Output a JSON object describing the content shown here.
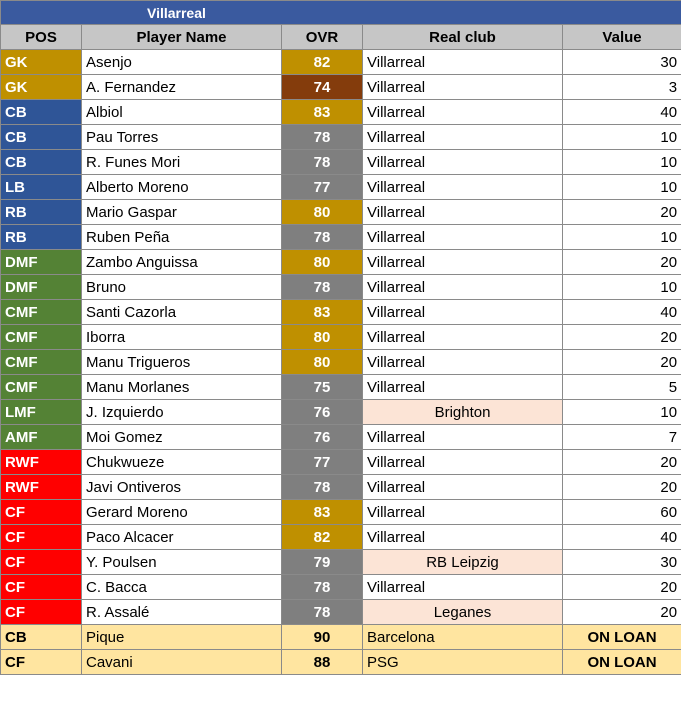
{
  "team_title": "Villarreal",
  "headers": {
    "pos": "POS",
    "name": "Player Name",
    "ovr": "OVR",
    "club": "Real  club",
    "value": "Value"
  },
  "colors": {
    "GK": "#bf9000",
    "DEF": "#2f5597",
    "MID": "#548235",
    "FWD": "#ff0000",
    "ovr_gold": "#bf9000",
    "ovr_gray": "#7f7f7f",
    "ovr_bronze": "#843c0c",
    "club_highlight": "#fce4d6",
    "loan_row": "#ffe5a0"
  },
  "players": [
    {
      "pos": "GK",
      "pos_color": "#bf9000",
      "name": "Asenjo",
      "ovr": "82",
      "ovr_color": "#bf9000",
      "club": "Villarreal",
      "club_hl": false,
      "value": "30"
    },
    {
      "pos": "GK",
      "pos_color": "#bf9000",
      "name": "A. Fernandez",
      "ovr": "74",
      "ovr_color": "#843c0c",
      "club": "Villarreal",
      "club_hl": false,
      "value": "3"
    },
    {
      "pos": "CB",
      "pos_color": "#2f5597",
      "name": "Albiol",
      "ovr": "83",
      "ovr_color": "#bf9000",
      "club": "Villarreal",
      "club_hl": false,
      "value": "40"
    },
    {
      "pos": "CB",
      "pos_color": "#2f5597",
      "name": "Pau Torres",
      "ovr": "78",
      "ovr_color": "#7f7f7f",
      "club": "Villarreal",
      "club_hl": false,
      "value": "10"
    },
    {
      "pos": "CB",
      "pos_color": "#2f5597",
      "name": "R. Funes Mori",
      "ovr": "78",
      "ovr_color": "#7f7f7f",
      "club": "Villarreal",
      "club_hl": false,
      "value": "10"
    },
    {
      "pos": "LB",
      "pos_color": "#2f5597",
      "name": "Alberto Moreno",
      "ovr": "77",
      "ovr_color": "#7f7f7f",
      "club": "Villarreal",
      "club_hl": false,
      "value": "10"
    },
    {
      "pos": "RB",
      "pos_color": "#2f5597",
      "name": "Mario Gaspar",
      "ovr": "80",
      "ovr_color": "#bf9000",
      "club": "Villarreal",
      "club_hl": false,
      "value": "20"
    },
    {
      "pos": "RB",
      "pos_color": "#2f5597",
      "name": "Ruben Peña",
      "ovr": "78",
      "ovr_color": "#7f7f7f",
      "club": "Villarreal",
      "club_hl": false,
      "value": "10"
    },
    {
      "pos": "DMF",
      "pos_color": "#548235",
      "name": "Zambo Anguissa",
      "ovr": "80",
      "ovr_color": "#bf9000",
      "club": "Villarreal",
      "club_hl": false,
      "value": "20"
    },
    {
      "pos": "DMF",
      "pos_color": "#548235",
      "name": "Bruno",
      "ovr": "78",
      "ovr_color": "#7f7f7f",
      "club": "Villarreal",
      "club_hl": false,
      "value": "10"
    },
    {
      "pos": "CMF",
      "pos_color": "#548235",
      "name": "Santi Cazorla",
      "ovr": "83",
      "ovr_color": "#bf9000",
      "club": "Villarreal",
      "club_hl": false,
      "value": "40"
    },
    {
      "pos": "CMF",
      "pos_color": "#548235",
      "name": "Iborra",
      "ovr": "80",
      "ovr_color": "#bf9000",
      "club": "Villarreal",
      "club_hl": false,
      "value": "20"
    },
    {
      "pos": "CMF",
      "pos_color": "#548235",
      "name": "Manu Trigueros",
      "ovr": "80",
      "ovr_color": "#bf9000",
      "club": "Villarreal",
      "club_hl": false,
      "value": "20"
    },
    {
      "pos": "CMF",
      "pos_color": "#548235",
      "name": "Manu Morlanes",
      "ovr": "75",
      "ovr_color": "#7f7f7f",
      "club": "Villarreal",
      "club_hl": false,
      "value": "5"
    },
    {
      "pos": "LMF",
      "pos_color": "#548235",
      "name": "J. Izquierdo",
      "ovr": "76",
      "ovr_color": "#7f7f7f",
      "club": "Brighton",
      "club_hl": true,
      "value": "10"
    },
    {
      "pos": "AMF",
      "pos_color": "#548235",
      "name": "Moi Gomez",
      "ovr": "76",
      "ovr_color": "#7f7f7f",
      "club": "Villarreal",
      "club_hl": false,
      "value": "7"
    },
    {
      "pos": "RWF",
      "pos_color": "#ff0000",
      "name": "Chukwueze",
      "ovr": "77",
      "ovr_color": "#7f7f7f",
      "club": "Villarreal",
      "club_hl": false,
      "value": "20"
    },
    {
      "pos": "RWF",
      "pos_color": "#ff0000",
      "name": "Javi Ontiveros",
      "ovr": "78",
      "ovr_color": "#7f7f7f",
      "club": "Villarreal",
      "club_hl": false,
      "value": "20"
    },
    {
      "pos": "CF",
      "pos_color": "#ff0000",
      "name": "Gerard Moreno",
      "ovr": "83",
      "ovr_color": "#bf9000",
      "club": "Villarreal",
      "club_hl": false,
      "value": "60"
    },
    {
      "pos": "CF",
      "pos_color": "#ff0000",
      "name": "Paco Alcacer",
      "ovr": "82",
      "ovr_color": "#bf9000",
      "club": "Villarreal",
      "club_hl": false,
      "value": "40"
    },
    {
      "pos": "CF",
      "pos_color": "#ff0000",
      "name": "Y. Poulsen",
      "ovr": "79",
      "ovr_color": "#7f7f7f",
      "club": "RB Leipzig",
      "club_hl": true,
      "value": "30"
    },
    {
      "pos": "CF",
      "pos_color": "#ff0000",
      "name": "C. Bacca",
      "ovr": "78",
      "ovr_color": "#7f7f7f",
      "club": "Villarreal",
      "club_hl": false,
      "value": "20"
    },
    {
      "pos": "CF",
      "pos_color": "#ff0000",
      "name": "R. Assalé",
      "ovr": "78",
      "ovr_color": "#7f7f7f",
      "club": "Leganes",
      "club_hl": true,
      "value": "20"
    }
  ],
  "loans": [
    {
      "pos": "CB",
      "name": "Pique",
      "ovr": "90",
      "club": "Barcelona",
      "value": "ON LOAN"
    },
    {
      "pos": "CF",
      "name": "Cavani",
      "ovr": "88",
      "club": "PSG",
      "value": "ON LOAN"
    }
  ]
}
